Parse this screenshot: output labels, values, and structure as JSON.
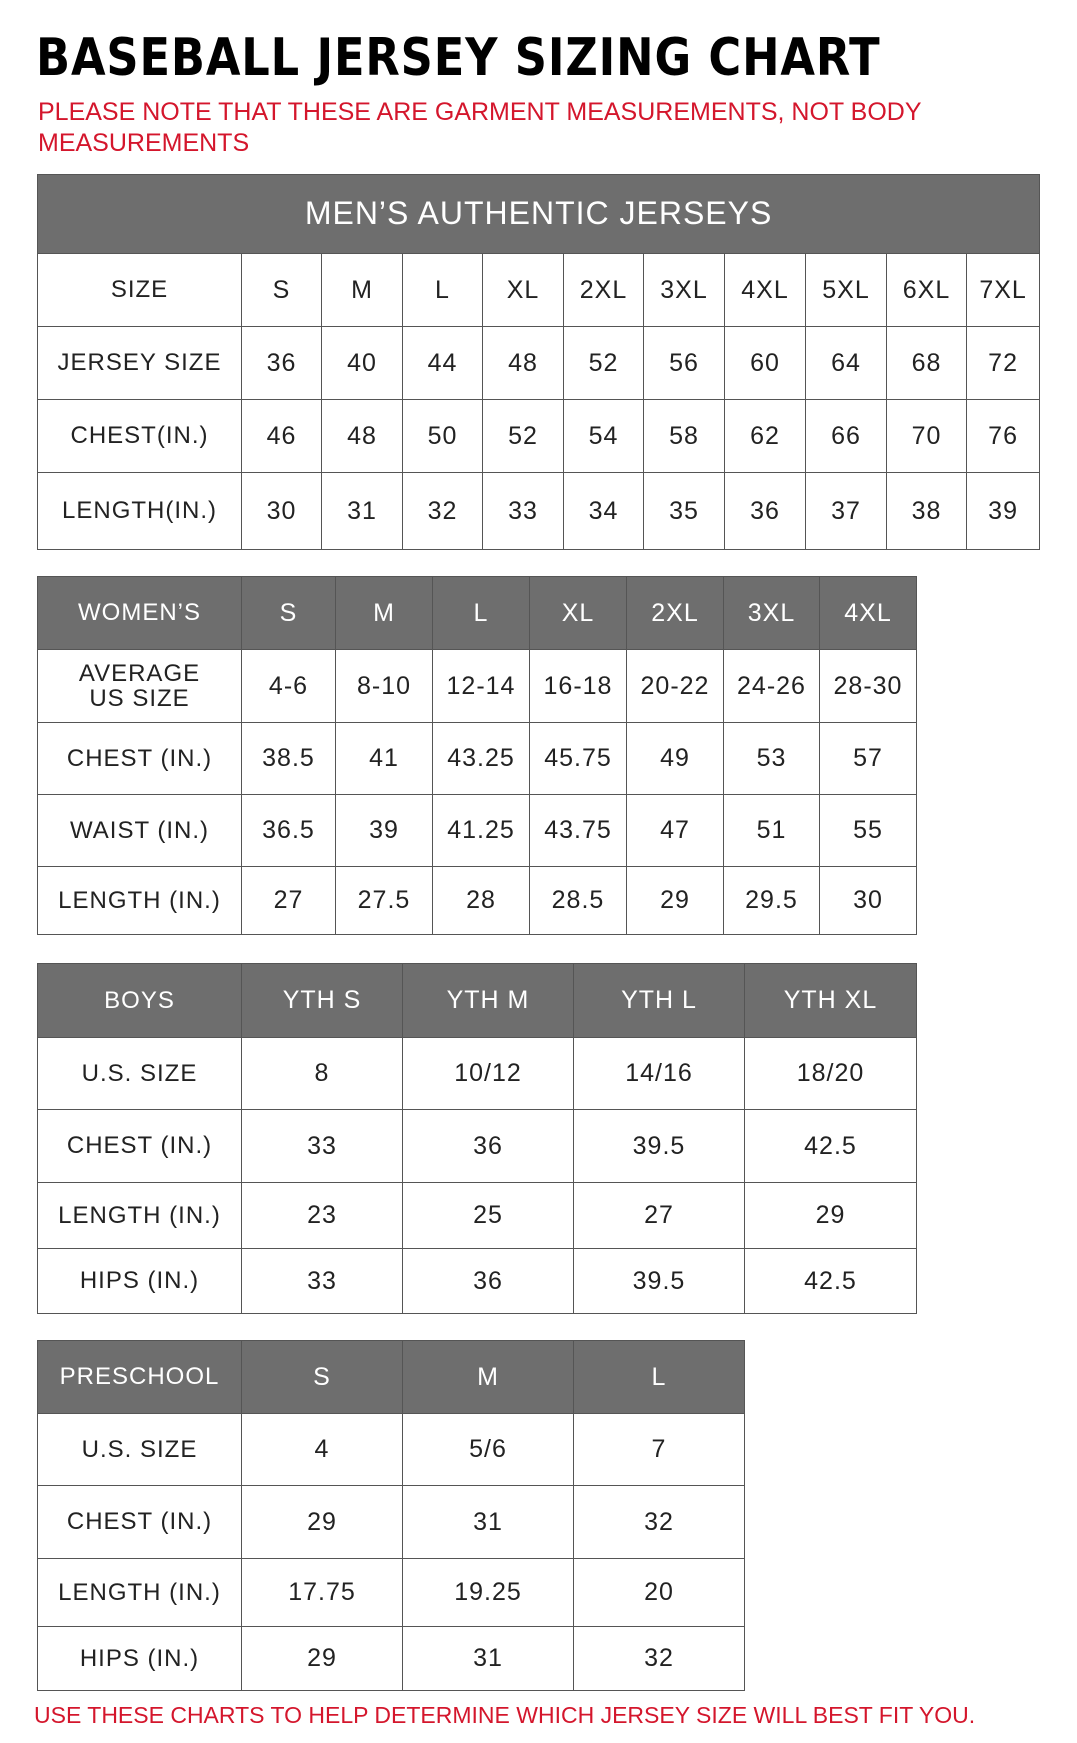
{
  "title": "BASEBALL JERSEY SIZING CHART",
  "note": "PLEASE NOTE THAT THESE ARE GARMENT MEASUREMENTS, NOT BODY MEASUREMENTS",
  "footer": "USE THESE CHARTS TO HELP DETERMINE WHICH JERSEY SIZE WILL BEST FIT YOU.",
  "colors": {
    "header_gray": "#6e6e6e",
    "note_red": "#d4162c"
  },
  "tables": [
    {
      "id": "mens",
      "banner": "MEN’S AUTHENTIC JERSEYS",
      "header": [
        "SIZE",
        "S",
        "M",
        "L",
        "XL",
        "2XL",
        "3XL",
        "4XL",
        "5XL",
        "6XL",
        "7XL"
      ],
      "header_dark": false,
      "rows": [
        [
          "JERSEY SIZE",
          "36",
          "40",
          "44",
          "48",
          "52",
          "56",
          "60",
          "64",
          "68",
          "72"
        ],
        [
          "CHEST(IN.)",
          "46",
          "48",
          "50",
          "52",
          "54",
          "58",
          "62",
          "66",
          "70",
          "76"
        ],
        [
          "LENGTH(IN.)",
          "30",
          "31",
          "32",
          "33",
          "34",
          "35",
          "36",
          "37",
          "38",
          "39"
        ]
      ]
    },
    {
      "id": "womens",
      "header": [
        "WOMEN’S",
        "S",
        "M",
        "L",
        "XL",
        "2XL",
        "3XL",
        "4XL"
      ],
      "header_dark": true,
      "rows": [
        [
          "AVERAGE US SIZE",
          "4-6",
          "8-10",
          "12-14",
          "16-18",
          "20-22",
          "24-26",
          "28-30"
        ],
        [
          "CHEST (IN.)",
          "38.5",
          "41",
          "43.25",
          "45.75",
          "49",
          "53",
          "57"
        ],
        [
          "WAIST (IN.)",
          "36.5",
          "39",
          "41.25",
          "43.75",
          "47",
          "51",
          "55"
        ],
        [
          "LENGTH (IN.)",
          "27",
          "27.5",
          "28",
          "28.5",
          "29",
          "29.5",
          "30"
        ]
      ]
    },
    {
      "id": "boys",
      "header": [
        "BOYS",
        "YTH S",
        "YTH M",
        "YTH L",
        "YTH XL"
      ],
      "header_dark": true,
      "rows": [
        [
          "U.S. SIZE",
          "8",
          "10/12",
          "14/16",
          "18/20"
        ],
        [
          "CHEST (IN.)",
          "33",
          "36",
          "39.5",
          "42.5"
        ],
        [
          "LENGTH (IN.)",
          "23",
          "25",
          "27",
          "29"
        ],
        [
          "HIPS (IN.)",
          "33",
          "36",
          "39.5",
          "42.5"
        ]
      ]
    },
    {
      "id": "preschool",
      "header": [
        "PRESCHOOL",
        "S",
        "M",
        "L"
      ],
      "header_dark": true,
      "rows": [
        [
          "U.S. SIZE",
          "4",
          "5/6",
          "7"
        ],
        [
          "CHEST (IN.)",
          "29",
          "31",
          "32"
        ],
        [
          "LENGTH (IN.)",
          "17.75",
          "19.25",
          "20"
        ],
        [
          "HIPS (IN.)",
          "29",
          "31",
          "32"
        ]
      ]
    }
  ]
}
